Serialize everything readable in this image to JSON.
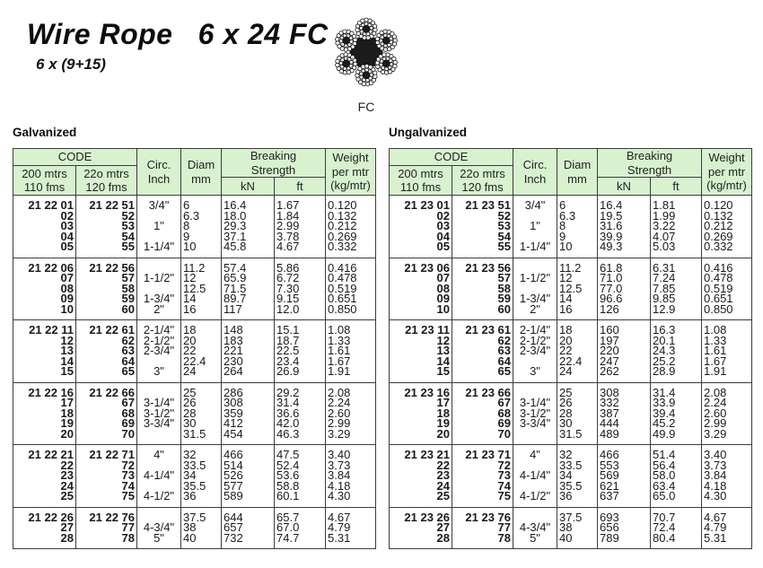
{
  "title": "Wire Rope   6 x 24 FC",
  "subtitle": "6 x (9+15)",
  "diagram": {
    "label": "FC",
    "icon": "wire-rope-cross-section-icon"
  },
  "colors": {
    "header_bg": "#d8f1cf",
    "border": "#3c3c3c",
    "text": "#1a1a1a"
  },
  "table_header": {
    "code": "CODE",
    "code_sub1": [
      "200 mtrs",
      "110 fms"
    ],
    "code_sub2": [
      "22o mtrs",
      "120 fms"
    ],
    "circ": [
      "Circ.",
      "Inch"
    ],
    "diam": [
      "Diam",
      "mm"
    ],
    "breaking": [
      "Breaking",
      "Strength"
    ],
    "kn": "kN",
    "ft": "ft",
    "weight": [
      "Weight",
      "per mtr",
      "(kg/mtr)"
    ]
  },
  "tables": [
    {
      "name": "Galvanized",
      "blocks": [
        {
          "code1": [
            "21 22 01",
            "02",
            "03",
            "04",
            "05"
          ],
          "code2": [
            "21 22 51",
            "52",
            "53",
            "54",
            "55"
          ],
          "circ": [
            "3/4\"",
            "",
            "1\"",
            "",
            "1-1/4\""
          ],
          "diam": [
            "6",
            "6.3",
            "8",
            "9",
            "10"
          ],
          "kn": [
            "16.4",
            "18.0",
            "29.3",
            "37.1",
            "45.8"
          ],
          "ft": [
            "1.67",
            "1.84",
            "2.99",
            "3.78",
            "4.67"
          ],
          "weight": [
            "0.120",
            "0.132",
            "0.212",
            "0.269",
            "0.332"
          ]
        },
        {
          "code1": [
            "21 22 06",
            "07",
            "08",
            "09",
            "10"
          ],
          "code2": [
            "21 22 56",
            "57",
            "58",
            "59",
            "60"
          ],
          "circ": [
            "",
            "1-1/2\"",
            "",
            "1-3/4\"",
            "2\""
          ],
          "diam": [
            "11.2",
            "12",
            "12.5",
            "14",
            "16"
          ],
          "kn": [
            "57.4",
            "65.9",
            "71.5",
            "89.7",
            "117"
          ],
          "ft": [
            "5.86",
            "6.72",
            "7.30",
            "9.15",
            "12.0"
          ],
          "weight": [
            "0.416",
            "0.478",
            "0.519",
            "0.651",
            "0.850"
          ]
        },
        {
          "code1": [
            "21 22 11",
            "12",
            "13",
            "14",
            "15"
          ],
          "code2": [
            "21 22 61",
            "62",
            "63",
            "64",
            "65"
          ],
          "circ": [
            "2-1/4\"",
            "2-1/2\"",
            "2-3/4\"",
            "",
            "3\""
          ],
          "diam": [
            "18",
            "20",
            "22",
            "22.4",
            "24"
          ],
          "kn": [
            "148",
            "183",
            "221",
            "230",
            "264"
          ],
          "ft": [
            "15.1",
            "18.7",
            "22.5",
            "23.4",
            "26.9"
          ],
          "weight": [
            "1.08",
            "1.33",
            "1.61",
            "1.67",
            "1.91"
          ]
        },
        {
          "code1": [
            "21 22 16",
            "17",
            "18",
            "19",
            "20"
          ],
          "code2": [
            "21 22 66",
            "67",
            "68",
            "69",
            "70"
          ],
          "circ": [
            "",
            "3-1/4\"",
            "3-1/2\"",
            "3-3/4\"",
            ""
          ],
          "diam": [
            "25",
            "26",
            "28",
            "30",
            "31.5"
          ],
          "kn": [
            "286",
            "308",
            "359",
            "412",
            "454"
          ],
          "ft": [
            "29.2",
            "31.4",
            "36.6",
            "42.0",
            "46.3"
          ],
          "weight": [
            "2.08",
            "2.24",
            "2.60",
            "2.99",
            "3.29"
          ]
        },
        {
          "code1": [
            "21 22 21",
            "22",
            "23",
            "24",
            "25"
          ],
          "code2": [
            "21 22 71",
            "72",
            "73",
            "74",
            "75"
          ],
          "circ": [
            "4\"",
            "",
            "4-1/4\"",
            "",
            "4-1/2\""
          ],
          "diam": [
            "32",
            "33.5",
            "34",
            "35.5",
            "36"
          ],
          "kn": [
            "466",
            "514",
            "526",
            "577",
            "589"
          ],
          "ft": [
            "47.5",
            "52.4",
            "53.6",
            "58.8",
            "60.1"
          ],
          "weight": [
            "3.40",
            "3.73",
            "3.84",
            "4.18",
            "4.30"
          ]
        },
        {
          "code1": [
            "21 22 26",
            "27",
            "28"
          ],
          "code2": [
            "21 22 76",
            "77",
            "78"
          ],
          "circ": [
            "",
            "4-3/4\"",
            "5\""
          ],
          "diam": [
            "37.5",
            "38",
            "40"
          ],
          "kn": [
            "644",
            "657",
            "732"
          ],
          "ft": [
            "65.7",
            "67.0",
            "74.7"
          ],
          "weight": [
            "4.67",
            "4.79",
            "5.31"
          ]
        }
      ]
    },
    {
      "name": "Ungalvanized",
      "blocks": [
        {
          "code1": [
            "21 23 01",
            "02",
            "03",
            "04",
            "05"
          ],
          "code2": [
            "21 23 51",
            "52",
            "53",
            "54",
            "55"
          ],
          "circ": [
            "3/4\"",
            "",
            "1\"",
            "",
            "1-1/4\""
          ],
          "diam": [
            "6",
            "6.3",
            "8",
            "9",
            "10"
          ],
          "kn": [
            "16.4",
            "19.5",
            "31.6",
            "39.9",
            "49.3"
          ],
          "ft": [
            "1.81",
            "1.99",
            "3.22",
            "4.07",
            "5.03"
          ],
          "weight": [
            "0.120",
            "0.132",
            "0.212",
            "0.269",
            "0.332"
          ]
        },
        {
          "code1": [
            "21 23 06",
            "07",
            "08",
            "09",
            "10"
          ],
          "code2": [
            "21 23 56",
            "57",
            "58",
            "59",
            "60"
          ],
          "circ": [
            "",
            "1-1/2\"",
            "",
            "1-3/4\"",
            "2\""
          ],
          "diam": [
            "11.2",
            "12",
            "12.5",
            "14",
            "16"
          ],
          "kn": [
            "61.8",
            "71.0",
            "77.0",
            "96.6",
            "126"
          ],
          "ft": [
            "6.31",
            "7.24",
            "7.85",
            "9.85",
            "12.9"
          ],
          "weight": [
            "0.416",
            "0.478",
            "0.519",
            "0.651",
            "0.850"
          ]
        },
        {
          "code1": [
            "21 23 11",
            "12",
            "13",
            "14",
            "15"
          ],
          "code2": [
            "21 23 61",
            "62",
            "63",
            "64",
            "65"
          ],
          "circ": [
            "2-1/4\"",
            "2-1/2\"",
            "2-3/4\"",
            "",
            "3\""
          ],
          "diam": [
            "18",
            "20",
            "22",
            "22.4",
            "24"
          ],
          "kn": [
            "160",
            "197",
            "220",
            "247",
            "262"
          ],
          "ft": [
            "16.3",
            "20.1",
            "24.3",
            "25.2",
            "28.9"
          ],
          "weight": [
            "1.08",
            "1.33",
            "1.61",
            "1.67",
            "1.91"
          ]
        },
        {
          "code1": [
            "21 23 16",
            "17",
            "18",
            "19",
            "20"
          ],
          "code2": [
            "21 23 66",
            "67",
            "68",
            "69",
            "70"
          ],
          "circ": [
            "",
            "3-1/4\"",
            "3-1/2\"",
            "3-3/4\"",
            ""
          ],
          "diam": [
            "25",
            "26",
            "28",
            "30",
            "31.5"
          ],
          "kn": [
            "308",
            "332",
            "387",
            "444",
            "489"
          ],
          "ft": [
            "31.4",
            "33.9",
            "39.4",
            "45.2",
            "49.9"
          ],
          "weight": [
            "2.08",
            "2.24",
            "2.60",
            "2.99",
            "3.29"
          ]
        },
        {
          "code1": [
            "21 23 21",
            "22",
            "23",
            "24",
            "25"
          ],
          "code2": [
            "21 23 71",
            "72",
            "73",
            "74",
            "75"
          ],
          "circ": [
            "4\"",
            "",
            "4-1/4\"",
            "",
            "4-1/2\""
          ],
          "diam": [
            "32",
            "33.5",
            "34",
            "35.5",
            "36"
          ],
          "kn": [
            "466",
            "553",
            "569",
            "621",
            "637"
          ],
          "ft": [
            "51.4",
            "56.4",
            "58.0",
            "63.4",
            "65.0"
          ],
          "weight": [
            "3.40",
            "3.73",
            "3.84",
            "4.18",
            "4.30"
          ]
        },
        {
          "code1": [
            "21 23 26",
            "27",
            "28"
          ],
          "code2": [
            "21 23 76",
            "77",
            "78"
          ],
          "circ": [
            "",
            "4-3/4\"",
            "5\""
          ],
          "diam": [
            "37.5",
            "38",
            "40"
          ],
          "kn": [
            "693",
            "656",
            "789"
          ],
          "ft": [
            "70.7",
            "72.4",
            "80.4"
          ],
          "weight": [
            "4.67",
            "4.79",
            "5.31"
          ]
        }
      ]
    }
  ]
}
